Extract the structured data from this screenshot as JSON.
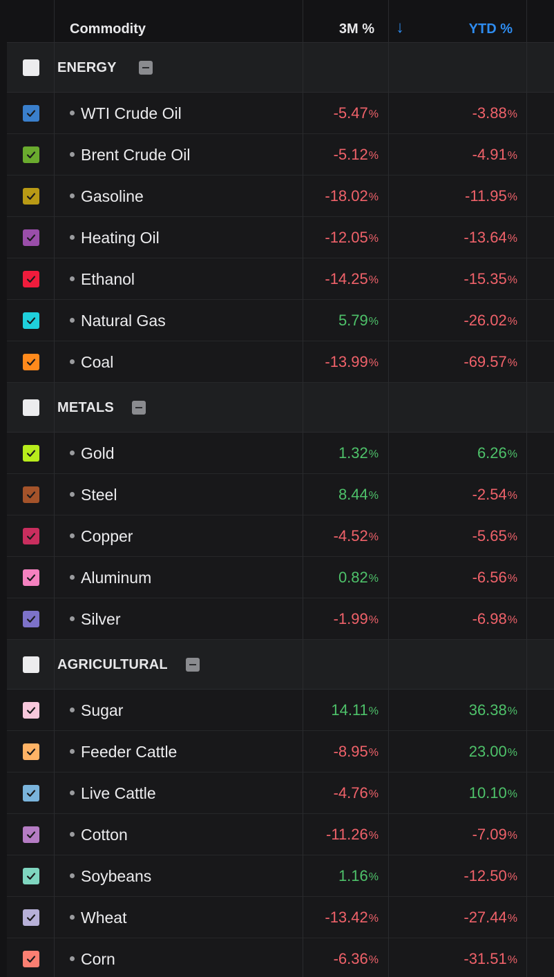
{
  "header": {
    "commodity": "Commodity",
    "three_month": "3M %",
    "sort_arrow": "↓",
    "ytd": "YTD %"
  },
  "colors": {
    "negative": "#f0626a",
    "positive": "#4ec26a",
    "accent": "#2e8cf0"
  },
  "groups": [
    {
      "label": "ENERGY",
      "items": [
        {
          "name": "WTI Crude Oil",
          "m3": "-5.47",
          "ytd": "-3.88",
          "color": "#3a7fcc"
        },
        {
          "name": "Brent Crude Oil",
          "m3": "-5.12",
          "ytd": "-4.91",
          "color": "#6aab2e"
        },
        {
          "name": "Gasoline",
          "m3": "-18.02",
          "ytd": "-11.95",
          "color": "#b99a15"
        },
        {
          "name": "Heating Oil",
          "m3": "-12.05",
          "ytd": "-13.64",
          "color": "#9a4eaa"
        },
        {
          "name": "Ethanol",
          "m3": "-14.25",
          "ytd": "-15.35",
          "color": "#f01c3c"
        },
        {
          "name": "Natural Gas",
          "m3": "5.79",
          "ytd": "-26.02",
          "color": "#1fd0dc"
        },
        {
          "name": "Coal",
          "m3": "-13.99",
          "ytd": "-69.57",
          "color": "#ff8a1c"
        }
      ]
    },
    {
      "label": "METALS",
      "items": [
        {
          "name": "Gold",
          "m3": "1.32",
          "ytd": "6.26",
          "color": "#b8ec1c"
        },
        {
          "name": "Steel",
          "m3": "8.44",
          "ytd": "-2.54",
          "color": "#a4532a"
        },
        {
          "name": "Copper",
          "m3": "-4.52",
          "ytd": "-5.65",
          "color": "#c92e5e"
        },
        {
          "name": "Aluminum",
          "m3": "0.82",
          "ytd": "-6.56",
          "color": "#f581c0"
        },
        {
          "name": "Silver",
          "m3": "-1.99",
          "ytd": "-6.98",
          "color": "#7d72c9"
        }
      ]
    },
    {
      "label": "AGRICULTURAL",
      "items": [
        {
          "name": "Sugar",
          "m3": "14.11",
          "ytd": "36.38",
          "color": "#f8c8dc"
        },
        {
          "name": "Feeder Cattle",
          "m3": "-8.95",
          "ytd": "23.00",
          "color": "#ffb366"
        },
        {
          "name": "Live Cattle",
          "m3": "-4.76",
          "ytd": "10.10",
          "color": "#7ab4dc"
        },
        {
          "name": "Cotton",
          "m3": "-11.26",
          "ytd": "-7.09",
          "color": "#b57cc4"
        },
        {
          "name": "Soybeans",
          "m3": "1.16",
          "ytd": "-12.50",
          "color": "#7fd6c0"
        },
        {
          "name": "Wheat",
          "m3": "-13.42",
          "ytd": "-27.44",
          "color": "#b7b0d8"
        },
        {
          "name": "Corn",
          "m3": "-6.36",
          "ytd": "-31.51",
          "color": "#fb7f72"
        }
      ]
    }
  ],
  "percent_sign": "%"
}
